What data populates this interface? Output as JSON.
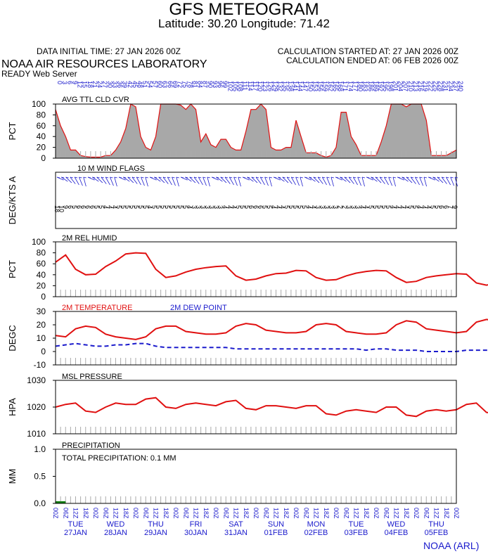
{
  "header": {
    "title": "GFS METEOGRAM",
    "subtitle": "Latitude: 30.20 Longitude:  71.42",
    "initial_time": "DATA INITIAL TIME: 27 JAN 2026 00Z",
    "calc_started": "CALCULATION STARTED AT: 27 JAN 2026 00Z",
    "calc_ended": "CALCULATION ENDED AT: 06 FEB 2026 00Z",
    "lab": "NOAA AIR RESOURCES LABORATORY",
    "server": "READY Web Server",
    "credit": "NOAA (ARL)"
  },
  "colors": {
    "cloud_fill": "#a8a8a8",
    "red": "#e01010",
    "blue": "#1a1acc",
    "green": "#108010"
  },
  "days": [
    {
      "dow": "TUE",
      "date": "27JAN"
    },
    {
      "dow": "WED",
      "date": "28JAN"
    },
    {
      "dow": "THU",
      "date": "29JAN"
    },
    {
      "dow": "FRI",
      "date": "30JAN"
    },
    {
      "dow": "SAT",
      "date": "31JAN"
    },
    {
      "dow": "SUN",
      "date": "01FEB"
    },
    {
      "dow": "MON",
      "date": "02FEB"
    },
    {
      "dow": "TUE",
      "date": "03FEB"
    },
    {
      "dow": "WED",
      "date": "04FEB"
    },
    {
      "dow": "THU",
      "date": "05FEB"
    }
  ],
  "hour_labels": [
    "00Z",
    "06Z",
    "12Z",
    "18Z"
  ],
  "chart_data": [
    {
      "type": "area",
      "title": "AVG TTL CLD CVR",
      "ylabel": "PCT",
      "ylim": [
        0,
        100
      ],
      "yticks": [
        "0",
        "20",
        "40",
        "60",
        "80",
        "100"
      ],
      "x_step_hours": 3,
      "values": [
        90,
        60,
        40,
        15,
        15,
        5,
        3,
        2,
        2,
        2,
        5,
        5,
        15,
        30,
        55,
        100,
        95,
        40,
        20,
        15,
        40,
        100,
        100,
        100,
        100,
        98,
        90,
        100,
        90,
        30,
        45,
        25,
        20,
        35,
        35,
        20,
        15,
        15,
        50,
        90,
        90,
        100,
        90,
        20,
        15,
        15,
        20,
        20,
        70,
        40,
        10,
        10,
        10,
        5,
        2,
        5,
        20,
        85,
        85,
        40,
        25,
        5,
        5,
        5,
        5,
        30,
        60,
        100,
        100,
        100,
        95,
        100,
        100,
        100,
        70,
        5,
        5,
        5,
        5,
        10,
        15
      ]
    },
    {
      "type": "scatter",
      "title": "10 M  WIND FLAGS",
      "ylabel": "DEG/KTS  A",
      "speed_labels": [
        "18",
        "10",
        "9",
        "6",
        "5",
        "6",
        "6",
        "6",
        "6",
        "5",
        "5",
        "4",
        "4",
        "4",
        "5",
        "5",
        "5",
        "5",
        "5",
        "5",
        "5",
        "4",
        "5",
        "5",
        "5",
        "5",
        "5",
        "5",
        "5",
        "5",
        "4",
        "3",
        "3",
        "3",
        "3",
        "3",
        "3",
        "3",
        "4",
        "4",
        "4",
        "5",
        "5",
        "5",
        "6",
        "6",
        "6",
        "5",
        "5",
        "4",
        "4",
        "4",
        "5",
        "5",
        "5",
        "5",
        "5",
        "4",
        "4",
        "3",
        "3",
        "3",
        "3",
        "3",
        "2",
        "2",
        "3",
        "3",
        "3",
        "4",
        "4",
        "5",
        "5",
        "5",
        "5",
        "5",
        "4",
        "4",
        "4",
        "4",
        "5",
        "5",
        "4",
        "4",
        "4",
        "5",
        "5",
        "6",
        "6",
        "7",
        "9"
      ]
    },
    {
      "type": "line",
      "title": "2M REL HUMID",
      "ylabel": "PCT",
      "ylim": [
        0,
        100
      ],
      "yticks": [
        "0",
        "20",
        "40",
        "60",
        "80",
        "100"
      ],
      "x_step_hours": 6,
      "values": [
        63,
        76,
        50,
        40,
        41,
        55,
        65,
        78,
        80,
        79,
        50,
        35,
        38,
        45,
        50,
        53,
        55,
        56,
        38,
        30,
        32,
        38,
        42,
        43,
        48,
        47,
        35,
        30,
        31,
        38,
        43,
        46,
        48,
        47,
        35,
        26,
        28,
        35,
        38,
        40,
        42,
        41,
        25,
        21,
        25,
        32,
        37,
        40,
        42,
        41,
        26,
        21,
        23,
        30,
        33,
        35,
        35,
        34,
        24,
        21,
        26,
        32,
        35,
        36,
        35,
        34,
        23,
        20,
        23,
        28,
        30,
        31,
        31,
        30,
        20,
        18,
        22,
        28,
        31,
        33,
        34
      ]
    },
    {
      "type": "line",
      "ylabel": "DEGC",
      "ylim": [
        -10,
        30
      ],
      "yticks": [
        "-10",
        "0",
        "10",
        "20",
        "30"
      ],
      "x_step_hours": 6,
      "series": [
        {
          "name": "2M TEMPERATURE",
          "dashed": false,
          "values": [
            12,
            11,
            17,
            19,
            18,
            13,
            11,
            10,
            9,
            11,
            17,
            19,
            19,
            15,
            14,
            13,
            13,
            14,
            19,
            21,
            20,
            16,
            15,
            14,
            14,
            15,
            20,
            21,
            20,
            15,
            14,
            13,
            13,
            14,
            20,
            23,
            22,
            17,
            16,
            15,
            14,
            15,
            22,
            24,
            23,
            18,
            16,
            15,
            16,
            17,
            23,
            25,
            24,
            19,
            17,
            16,
            16,
            17,
            23,
            26,
            25,
            20,
            18,
            17,
            16,
            17,
            23,
            25,
            24,
            19,
            17,
            16,
            16,
            17,
            24,
            27,
            26,
            21,
            19,
            17,
            16
          ]
        },
        {
          "name": "2M  DEW POINT",
          "dashed": true,
          "values": [
            4,
            5,
            6,
            5,
            4,
            4,
            5,
            5,
            6,
            6,
            4,
            3,
            3,
            3,
            3,
            3,
            3,
            3,
            2,
            2,
            2,
            2,
            2,
            2,
            2,
            2,
            2,
            2,
            2,
            2,
            2,
            1,
            2,
            2,
            1,
            1,
            1,
            0,
            0,
            0,
            0,
            1,
            1,
            1,
            0,
            0,
            1,
            1,
            1,
            2,
            1,
            0,
            0,
            0,
            0,
            1,
            1,
            1,
            1,
            2,
            1,
            0,
            0,
            0,
            0,
            0,
            0,
            0,
            0,
            0,
            -1,
            -1,
            -1,
            -1,
            0,
            0,
            0,
            1,
            0,
            0,
            -1
          ]
        }
      ]
    },
    {
      "type": "line",
      "title": "MSL PRESSURE",
      "ylabel": "HPA",
      "ylim": [
        1010,
        1030
      ],
      "yticks": [
        "1010",
        "1020",
        "1030"
      ],
      "x_step_hours": 6,
      "values": [
        1020,
        1021,
        1021.5,
        1018.5,
        1018,
        1020,
        1021.5,
        1021,
        1021,
        1023,
        1023.5,
        1020,
        1019.5,
        1021,
        1021.5,
        1021,
        1020.5,
        1022,
        1022.5,
        1019.5,
        1019,
        1020.5,
        1020.5,
        1020,
        1019.5,
        1020.5,
        1020.5,
        1017.5,
        1017,
        1018.5,
        1019,
        1018.5,
        1018,
        1020,
        1020,
        1017,
        1016.5,
        1018.5,
        1019,
        1018.5,
        1019,
        1021,
        1021.5,
        1018,
        1017.5,
        1019.5,
        1020,
        1020,
        1020,
        1021.5,
        1022,
        1018.5,
        1018,
        1019,
        1019,
        1018,
        1018,
        1020,
        1020,
        1016.5,
        1015.5,
        1017.5,
        1018,
        1018,
        1018,
        1020,
        1021,
        1017.5,
        1017,
        1018.5,
        1019,
        1018,
        1017.5,
        1018.5,
        1020,
        1017,
        1016.5,
        1017.5,
        1018,
        1018,
        1017
      ]
    },
    {
      "type": "bar",
      "title": "PRECIPITATION",
      "annotation": "TOTAL PRECIPITATION:   0.1 MM",
      "ylabel": "MM",
      "ylim": [
        0,
        1
      ],
      "yticks": [
        "0.0",
        "0.5",
        "1.0"
      ],
      "x_step_hours": 3,
      "values": [
        0.04,
        0.04
      ]
    }
  ]
}
